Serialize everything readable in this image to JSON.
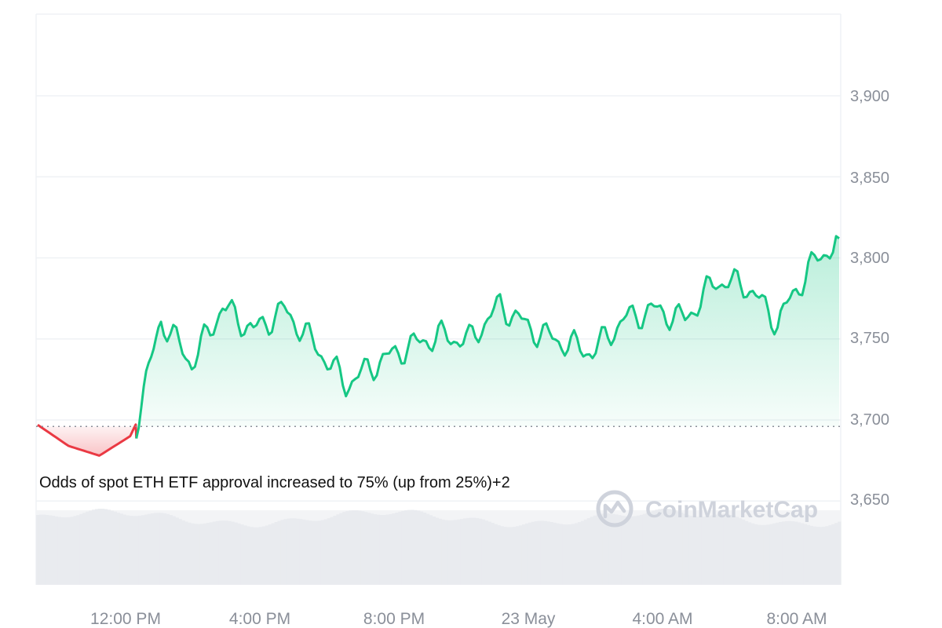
{
  "chart_data": {
    "type": "area",
    "series": [
      {
        "x": [
          0,
          1.0,
          2.0,
          3.0,
          3.2,
          4.0,
          5.0,
          6.0,
          7.0,
          8.0,
          9.0,
          10.0,
          11.0,
          12.0,
          13.0,
          14.0,
          15.0,
          16.0,
          17.0,
          18.0,
          19.0,
          20.0,
          21.0,
          22.0,
          23.0,
          24.0,
          25.0,
          26.0
        ],
        "y": [
          3697,
          3684,
          3678,
          3690,
          3698,
          3762,
          3735,
          3770,
          3755,
          3768,
          3746,
          3722,
          3735,
          3745,
          3752,
          3749,
          3771,
          3756,
          3748,
          3742,
          3762,
          3768,
          3762,
          3786,
          3783,
          3760,
          3793,
          3812
        ]
      }
    ],
    "baseline": 3696,
    "ylim": [
      3600,
      3950
    ],
    "yticks": [
      "3,900",
      "3,850",
      "3,800",
      "3,750",
      "3,700",
      "3,650"
    ],
    "xticks": [
      "12:00 PM",
      "4:00 PM",
      "8:00 PM",
      "23 May",
      "4:00 AM",
      "8:00 AM"
    ],
    "colors": {
      "up": "#16c784",
      "down": "#ea3943",
      "grid": "#eff2f5",
      "volume": "#e9ebef"
    }
  },
  "annotation": "Odds of spot ETH ETF approval increased to 75% (up from 25%)+2",
  "watermark": "CoinMarketCap"
}
